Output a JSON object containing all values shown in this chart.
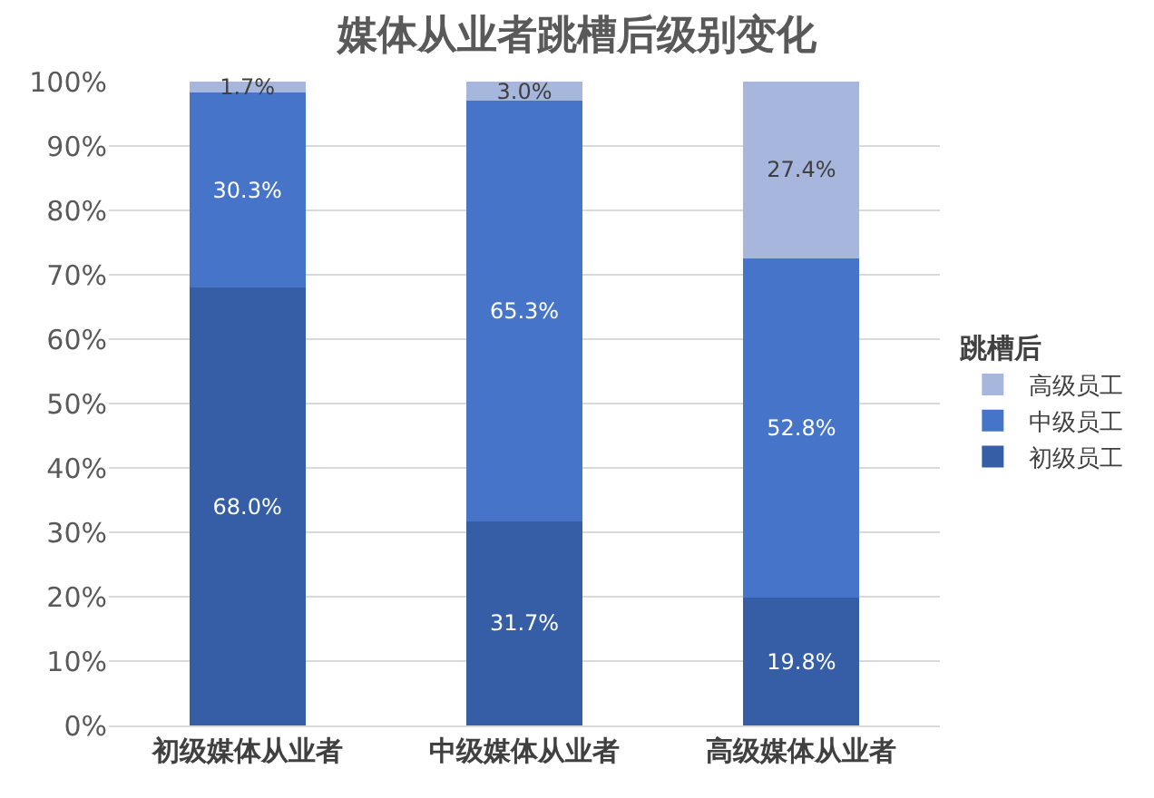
{
  "chart_data": {
    "type": "bar",
    "title": "媒体从业者跳槽后级别变化",
    "legend_title": "跳槽后",
    "categories": [
      "初级媒体从业者",
      "中级媒体从业者",
      "高级媒体从业者"
    ],
    "stacked": true,
    "series": [
      {
        "name": "初级员工",
        "color": "#355ea6",
        "values": [
          68.0,
          31.7,
          19.8
        ],
        "value_labels": [
          "68.0%",
          "31.7%",
          "19.8%"
        ]
      },
      {
        "name": "中级员工",
        "color": "#4674c8",
        "values": [
          30.3,
          65.3,
          52.8
        ],
        "value_labels": [
          "30.3%",
          "65.3%",
          "52.8%"
        ]
      },
      {
        "name": "高级员工",
        "color": "#a6b6dc",
        "values": [
          1.7,
          3.0,
          27.4
        ],
        "value_labels": [
          "1.7%",
          "3.0%",
          "27.4%"
        ]
      }
    ],
    "ylim": [
      0,
      100
    ],
    "yticks": [
      {
        "value": 0,
        "label": "0%"
      },
      {
        "value": 10,
        "label": "10%"
      },
      {
        "value": 20,
        "label": "20%"
      },
      {
        "value": 30,
        "label": "30%"
      },
      {
        "value": 40,
        "label": "40%"
      },
      {
        "value": 50,
        "label": "50%"
      },
      {
        "value": 60,
        "label": "60%"
      },
      {
        "value": 70,
        "label": "70%"
      },
      {
        "value": 80,
        "label": "80%"
      },
      {
        "value": 90,
        "label": "90%"
      },
      {
        "value": 100,
        "label": "100%"
      }
    ],
    "grid": "y",
    "legend": "right"
  }
}
